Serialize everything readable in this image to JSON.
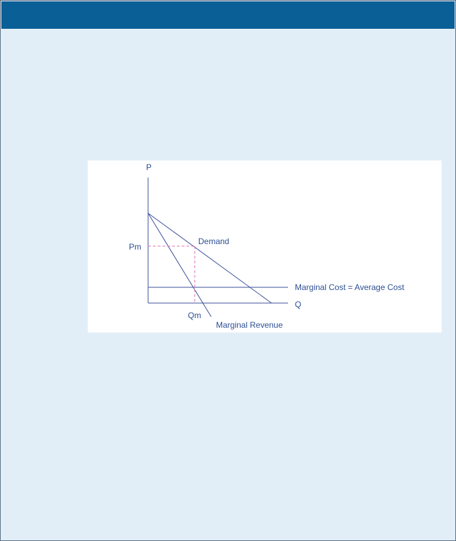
{
  "header": {
    "color": "#0b5f97"
  },
  "diagram": {
    "axis_y_label": "P",
    "axis_x_label": "Q",
    "price_label": "Pm",
    "quantity_label": "Qm",
    "demand_label": "Demand",
    "marginal_revenue_label": "Marginal Revenue",
    "cost_label": "Marginal Cost = Average Cost",
    "colors": {
      "curves": "#3b4f9a",
      "labels": "#2d4f93",
      "dashed_guides": "#e070b0"
    }
  }
}
